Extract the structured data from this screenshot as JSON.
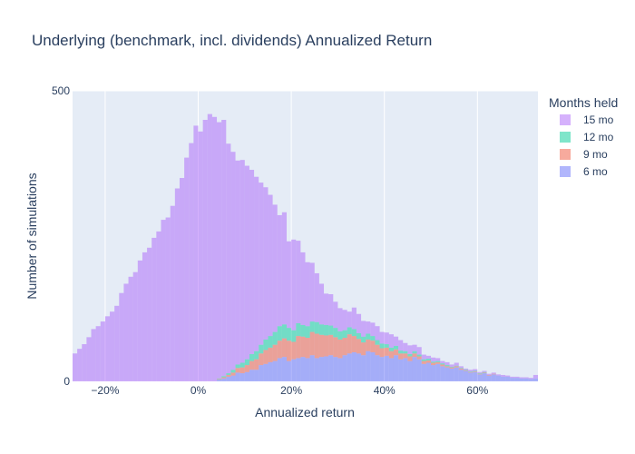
{
  "chart_data": {
    "type": "bar",
    "barmode": "stack",
    "title": "Underlying (benchmark, incl. dividends) Annualized Return",
    "xlabel": "Annualized return",
    "ylabel": "Number of simulations",
    "x_tick_values": [
      -0.2,
      0,
      0.2,
      0.4,
      0.6
    ],
    "x_tick_labels": [
      "−20%",
      "0%",
      "20%",
      "40%",
      "60%"
    ],
    "y_tick_values": [
      0,
      500
    ],
    "y_tick_labels": [
      "0",
      "500"
    ],
    "xlim": [
      -0.27,
      0.73
    ],
    "ylim": [
      0,
      500
    ],
    "grid": true,
    "legend_title": "Months held",
    "legend_position": "right",
    "bin_width": 0.01,
    "bin_starts": [
      -0.27,
      -0.26,
      -0.25,
      -0.24,
      -0.23,
      -0.22,
      -0.21,
      -0.2,
      -0.19,
      -0.18,
      -0.17,
      -0.16,
      -0.15,
      -0.14,
      -0.13,
      -0.12,
      -0.11,
      -0.1,
      -0.09,
      -0.08,
      -0.07,
      -0.06,
      -0.05,
      -0.04,
      -0.03,
      -0.02,
      -0.01,
      0.0,
      0.01,
      0.02,
      0.03,
      0.04,
      0.05,
      0.06,
      0.07,
      0.08,
      0.09,
      0.1,
      0.11,
      0.12,
      0.13,
      0.14,
      0.15,
      0.16,
      0.17,
      0.18,
      0.19,
      0.2,
      0.21,
      0.22,
      0.23,
      0.24,
      0.25,
      0.26,
      0.27,
      0.28,
      0.29,
      0.3,
      0.31,
      0.32,
      0.33,
      0.34,
      0.35,
      0.36,
      0.37,
      0.38,
      0.39,
      0.4,
      0.41,
      0.42,
      0.43,
      0.44,
      0.45,
      0.46,
      0.47,
      0.48,
      0.49,
      0.5,
      0.51,
      0.52,
      0.53,
      0.54,
      0.55,
      0.56,
      0.57,
      0.58,
      0.59,
      0.6,
      0.61,
      0.62,
      0.63,
      0.64,
      0.65,
      0.66,
      0.67,
      0.68,
      0.69,
      0.7,
      0.71,
      0.72
    ],
    "series": [
      {
        "name": "6 mo",
        "color": "#636efa",
        "values": [
          0,
          0,
          0,
          0,
          0,
          0,
          0,
          0,
          0,
          0,
          0,
          0,
          0,
          0,
          0,
          0,
          0,
          0,
          0,
          0,
          0,
          0,
          0,
          0,
          0,
          0,
          0,
          0,
          0,
          0,
          0,
          3,
          5,
          8,
          10,
          15,
          14,
          16,
          20,
          20,
          28,
          30,
          33,
          35,
          40,
          42,
          35,
          38,
          40,
          42,
          40,
          45,
          40,
          42,
          43,
          45,
          42,
          40,
          45,
          48,
          50,
          48,
          45,
          52,
          50,
          45,
          42,
          44,
          40,
          45,
          38,
          40,
          35,
          42,
          38,
          30,
          32,
          28,
          30,
          26,
          24,
          22,
          24,
          20,
          18,
          15,
          16,
          12,
          14,
          10,
          12,
          10,
          8,
          8,
          6,
          6,
          5,
          5,
          4,
          5
        ]
      },
      {
        "name": "9 mo",
        "color": "#EF553B",
        "values": [
          0,
          0,
          0,
          0,
          0,
          0,
          0,
          0,
          0,
          0,
          0,
          0,
          0,
          0,
          0,
          0,
          0,
          0,
          0,
          0,
          0,
          0,
          0,
          0,
          0,
          0,
          0,
          0,
          0,
          0,
          0,
          1,
          2,
          3,
          5,
          8,
          10,
          12,
          15,
          18,
          20,
          24,
          25,
          28,
          30,
          32,
          35,
          30,
          38,
          35,
          35,
          40,
          42,
          38,
          36,
          35,
          34,
          32,
          30,
          33,
          28,
          25,
          22,
          20,
          20,
          18,
          15,
          14,
          12,
          10,
          10,
          8,
          8,
          6,
          5,
          5,
          4,
          4,
          3,
          3,
          2,
          2,
          2,
          2,
          1,
          1,
          1,
          1,
          1,
          1,
          1,
          0,
          0,
          0,
          0,
          0,
          0,
          0,
          0,
          0
        ]
      },
      {
        "name": "12 mo",
        "color": "#00cc96",
        "values": [
          0,
          0,
          0,
          0,
          0,
          0,
          0,
          0,
          0,
          0,
          0,
          0,
          0,
          0,
          0,
          0,
          0,
          0,
          0,
          0,
          0,
          0,
          0,
          0,
          0,
          0,
          0,
          0,
          0,
          0,
          0,
          1,
          2,
          3,
          5,
          6,
          8,
          10,
          12,
          14,
          15,
          18,
          20,
          22,
          25,
          24,
          22,
          20,
          22,
          20,
          20,
          18,
          20,
          18,
          18,
          16,
          16,
          14,
          13,
          12,
          12,
          10,
          10,
          10,
          8,
          8,
          8,
          6,
          6,
          6,
          5,
          4,
          4,
          4,
          3,
          3,
          3,
          2,
          2,
          2,
          2,
          1,
          1,
          1,
          1,
          1,
          1,
          1,
          1,
          0,
          0,
          0,
          0,
          0,
          0,
          0,
          0,
          0,
          0,
          0
        ]
      },
      {
        "name": "15 mo",
        "color": "#ab63fa",
        "values": [
          48,
          56,
          64,
          76,
          90,
          95,
          103,
          112,
          120,
          130,
          152,
          168,
          180,
          188,
          208,
          222,
          230,
          247,
          258,
          278,
          282,
          302,
          332,
          350,
          385,
          410,
          440,
          430,
          450,
          460,
          455,
          441,
          441,
          395,
          375,
          351,
          349,
          333,
          317,
          300,
          279,
          262,
          243,
          219,
          191,
          193,
          149,
          156,
          142,
          125,
          110,
          101,
          84,
          70,
          54,
          54,
          45,
          40,
          35,
          27,
          37,
          33,
          27,
          21,
          23,
          24,
          20,
          20,
          23,
          16,
          18,
          14,
          15,
          11,
          13,
          8,
          5,
          7,
          5,
          4,
          5,
          4,
          5,
          3,
          2,
          3,
          3,
          2,
          2,
          2,
          2,
          2,
          3,
          2,
          2,
          2,
          2,
          2,
          2,
          6
        ]
      }
    ]
  }
}
